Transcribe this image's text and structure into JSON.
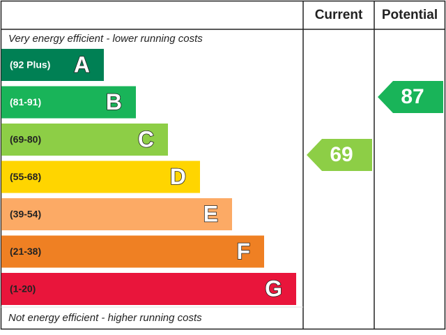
{
  "header": {
    "current": "Current",
    "potential": "Potential"
  },
  "top_note": "Very energy efficient - lower running costs",
  "bottom_note": "Not energy efficient - higher running costs",
  "bands": [
    {
      "range": "(92 Plus)",
      "letter": "A",
      "color": "#008054"
    },
    {
      "range": "(81-91)",
      "letter": "B",
      "color": "#19b459"
    },
    {
      "range": "(69-80)",
      "letter": "C",
      "color": "#8dce46"
    },
    {
      "range": "(55-68)",
      "letter": "D",
      "color": "#ffd500"
    },
    {
      "range": "(39-54)",
      "letter": "E",
      "color": "#fcaa65"
    },
    {
      "range": "(21-38)",
      "letter": "F",
      "color": "#ef8023"
    },
    {
      "range": "(1-20)",
      "letter": "G",
      "color": "#e9153b"
    }
  ],
  "current": {
    "value": "69",
    "color": "#8dce46"
  },
  "potential": {
    "value": "87",
    "color": "#19b459"
  }
}
